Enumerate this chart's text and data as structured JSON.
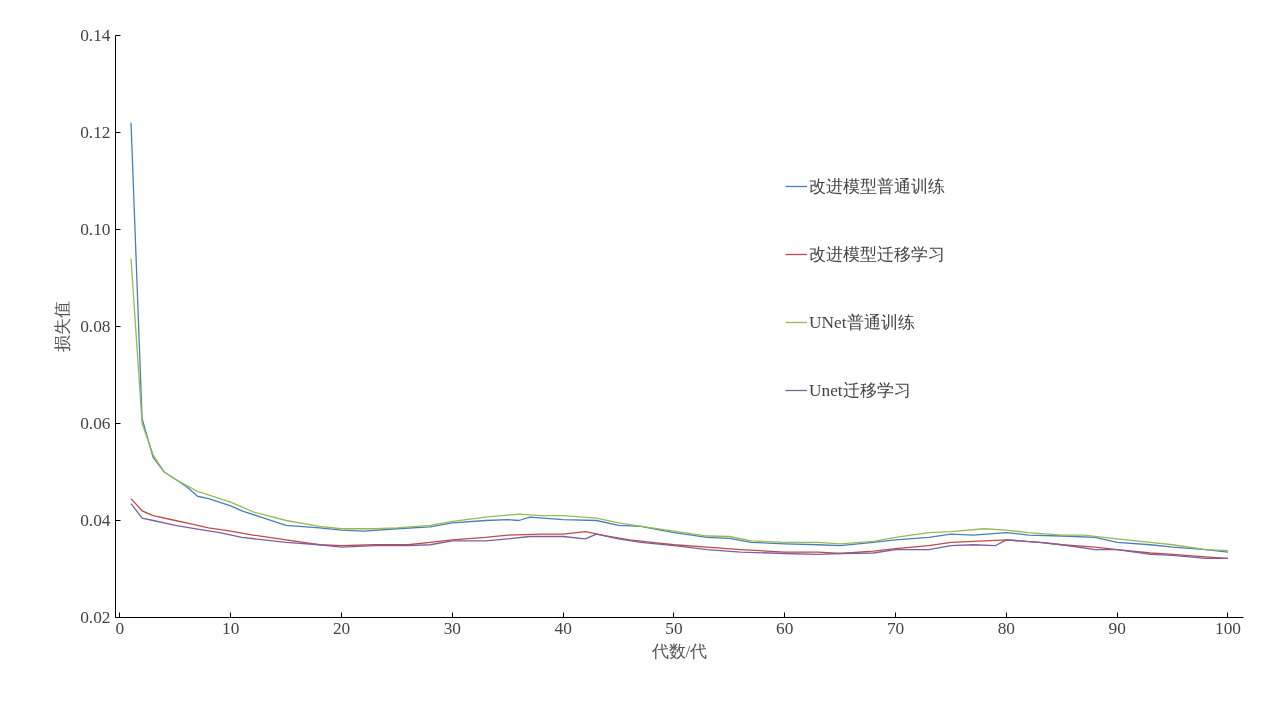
{
  "chart_data": {
    "type": "line",
    "xlabel": "代数/代",
    "ylabel": "损失值",
    "xlim": [
      -0.4,
      101.4
    ],
    "ylim": [
      0.02,
      0.14
    ],
    "xticks": [
      0,
      10,
      20,
      30,
      40,
      50,
      60,
      70,
      80,
      90,
      100
    ],
    "yticks": [
      {
        "value": 0.02,
        "label": "0.02"
      },
      {
        "value": 0.04,
        "label": "0.04"
      },
      {
        "value": 0.06,
        "label": "0.06"
      },
      {
        "value": 0.08,
        "label": "0.08"
      },
      {
        "value": 0.1,
        "label": "0.10"
      },
      {
        "value": 0.12,
        "label": "0.12"
      },
      {
        "value": 0.14,
        "label": "0.14"
      }
    ],
    "grid": false,
    "legend": "top right",
    "marker": "none",
    "line_style": "solid",
    "series": [
      {
        "name": "改进模型普通训练",
        "color": "#4a7ebb",
        "x": [
          1,
          2,
          3,
          4,
          5,
          6,
          7,
          8,
          10,
          11,
          13,
          15,
          18,
          20,
          22,
          25,
          28,
          30,
          33,
          35,
          36,
          37,
          40,
          43,
          45,
          47,
          50,
          53,
          55,
          57,
          60,
          63,
          65,
          68,
          70,
          73,
          75,
          77,
          80,
          82,
          85,
          88,
          90,
          93,
          95,
          98,
          100
        ],
        "values": [
          0.122,
          0.061,
          0.053,
          0.05,
          0.0485,
          0.047,
          0.045,
          0.0445,
          0.043,
          0.042,
          0.0405,
          0.039,
          0.0385,
          0.038,
          0.0378,
          0.0383,
          0.0387,
          0.0395,
          0.04,
          0.0402,
          0.04,
          0.0407,
          0.0402,
          0.04,
          0.039,
          0.0388,
          0.0375,
          0.0365,
          0.0363,
          0.0355,
          0.0352,
          0.035,
          0.0348,
          0.0355,
          0.036,
          0.0365,
          0.0372,
          0.037,
          0.0375,
          0.037,
          0.0368,
          0.0365,
          0.0355,
          0.035,
          0.0345,
          0.034,
          0.0335
        ]
      },
      {
        "name": "改进模型迁移学习",
        "color": "#be4b48",
        "x": [
          1,
          2,
          3,
          5,
          6,
          8,
          10,
          12,
          15,
          18,
          20,
          23,
          26,
          28,
          30,
          33,
          35,
          38,
          40,
          42,
          44,
          46,
          48,
          50,
          53,
          56,
          60,
          63,
          65,
          68,
          70,
          73,
          75,
          78,
          80,
          83,
          85,
          88,
          90,
          93,
          95,
          98,
          100
        ],
        "values": [
          0.0445,
          0.042,
          0.041,
          0.04,
          0.0395,
          0.0385,
          0.0378,
          0.037,
          0.036,
          0.035,
          0.0348,
          0.035,
          0.035,
          0.0355,
          0.036,
          0.0365,
          0.037,
          0.0372,
          0.0372,
          0.0377,
          0.0368,
          0.036,
          0.0355,
          0.035,
          0.0345,
          0.034,
          0.0335,
          0.0335,
          0.0332,
          0.0337,
          0.0342,
          0.0348,
          0.0355,
          0.0358,
          0.036,
          0.0355,
          0.035,
          0.0345,
          0.034,
          0.0333,
          0.033,
          0.0325,
          0.0322
        ]
      },
      {
        "name": "UNet普通训练",
        "color": "#98b954",
        "x": [
          1,
          2,
          3,
          4,
          5,
          7,
          10,
          12,
          15,
          18,
          20,
          23,
          25,
          28,
          30,
          33,
          36,
          38,
          40,
          43,
          45,
          48,
          50,
          53,
          55,
          57,
          60,
          63,
          65,
          68,
          70,
          73,
          75,
          78,
          80,
          82,
          85,
          87,
          90,
          93,
          95,
          98,
          100
        ],
        "values": [
          0.094,
          0.06,
          0.0535,
          0.05,
          0.0485,
          0.046,
          0.0438,
          0.0418,
          0.04,
          0.0388,
          0.0383,
          0.0383,
          0.0385,
          0.039,
          0.0398,
          0.0407,
          0.0413,
          0.041,
          0.041,
          0.0405,
          0.0395,
          0.0385,
          0.0378,
          0.0368,
          0.0367,
          0.0358,
          0.0355,
          0.0355,
          0.0352,
          0.0357,
          0.0365,
          0.0375,
          0.0377,
          0.0383,
          0.038,
          0.0375,
          0.037,
          0.037,
          0.0362,
          0.0355,
          0.035,
          0.034,
          0.0338
        ]
      },
      {
        "name": "Unet迁移学习",
        "color": "#7d60a0",
        "x": [
          1,
          2,
          3,
          5,
          7,
          9,
          11,
          13,
          15,
          18,
          20,
          23,
          26,
          28,
          30,
          33,
          35,
          37,
          40,
          42,
          43,
          45,
          47,
          50,
          53,
          56,
          60,
          63,
          65,
          68,
          70,
          73,
          75,
          77,
          79,
          80,
          83,
          85,
          88,
          90,
          93,
          95,
          98,
          100
        ],
        "values": [
          0.0435,
          0.0405,
          0.04,
          0.039,
          0.0382,
          0.0375,
          0.0365,
          0.036,
          0.0355,
          0.035,
          0.0345,
          0.0348,
          0.0348,
          0.035,
          0.0358,
          0.0358,
          0.0362,
          0.0367,
          0.0367,
          0.0362,
          0.0372,
          0.0362,
          0.0355,
          0.0348,
          0.034,
          0.0335,
          0.0332,
          0.033,
          0.0332,
          0.0333,
          0.034,
          0.034,
          0.0348,
          0.035,
          0.0348,
          0.036,
          0.0355,
          0.035,
          0.034,
          0.034,
          0.033,
          0.0328,
          0.0322,
          0.0322
        ]
      }
    ]
  }
}
